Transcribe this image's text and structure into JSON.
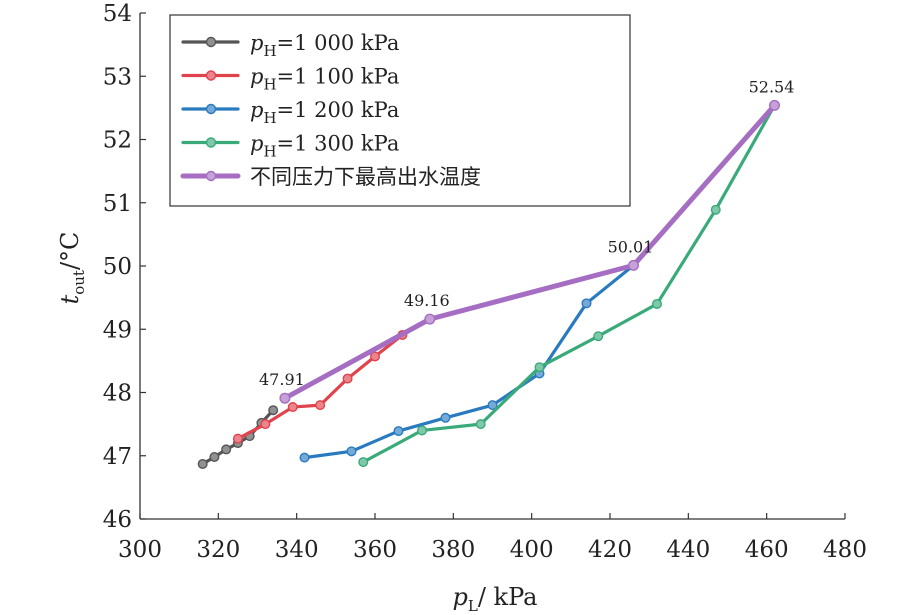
{
  "chart_data": {
    "type": "line",
    "xlabel": {
      "main": "p",
      "sub": "L",
      "rest": "/ kPa"
    },
    "ylabel": {
      "main": "t",
      "sub": "out",
      "rest": "/°C"
    },
    "xlim": [
      300,
      480
    ],
    "ylim": [
      46,
      54
    ],
    "xticks": [
      "300",
      "320",
      "340",
      "360",
      "380",
      "400",
      "420",
      "440",
      "460",
      "480"
    ],
    "yticks": [
      "46",
      "47",
      "48",
      "49",
      "50",
      "51",
      "52",
      "53",
      "54"
    ],
    "grid": false,
    "legend_position": "top-left",
    "series": [
      {
        "name": {
          "main": "p",
          "sub": "H",
          "rest": "=1 000 kPa"
        },
        "color": "#555555",
        "x": [
          316,
          319,
          322,
          325,
          328,
          331,
          334
        ],
        "y": [
          46.87,
          46.98,
          47.1,
          47.2,
          47.31,
          47.52,
          47.72
        ]
      },
      {
        "name": {
          "main": "p",
          "sub": "H",
          "rest": "=1 100 kPa"
        },
        "color": "#e0434c",
        "x": [
          325,
          332,
          339,
          346,
          353,
          360,
          367
        ],
        "y": [
          47.27,
          47.5,
          47.77,
          47.8,
          48.22,
          48.57,
          48.91
        ]
      },
      {
        "name": {
          "main": "p",
          "sub": "H",
          "rest": "=1 200 kPa"
        },
        "color": "#2a7ac0",
        "x": [
          342,
          354,
          366,
          378,
          390,
          402,
          414,
          426
        ],
        "y": [
          46.97,
          47.07,
          47.39,
          47.6,
          47.8,
          48.3,
          49.41,
          50.01
        ]
      },
      {
        "name": {
          "main": "p",
          "sub": "H",
          "rest": "=1 300 kPa"
        },
        "color": "#3aaa7a",
        "x": [
          357,
          372,
          387,
          402,
          417,
          432,
          447,
          462
        ],
        "y": [
          46.9,
          47.4,
          47.5,
          48.4,
          48.89,
          49.4,
          50.89,
          52.54
        ]
      },
      {
        "name": {
          "main": "不同压力下最高出水温度",
          "sub": "",
          "rest": ""
        },
        "color": "#a56ec3",
        "x": [
          337,
          374,
          426,
          462
        ],
        "y": [
          47.91,
          49.16,
          50.01,
          52.54
        ],
        "labels": [
          "47.91",
          "49.16",
          "50.01",
          "52.54"
        ]
      }
    ]
  }
}
